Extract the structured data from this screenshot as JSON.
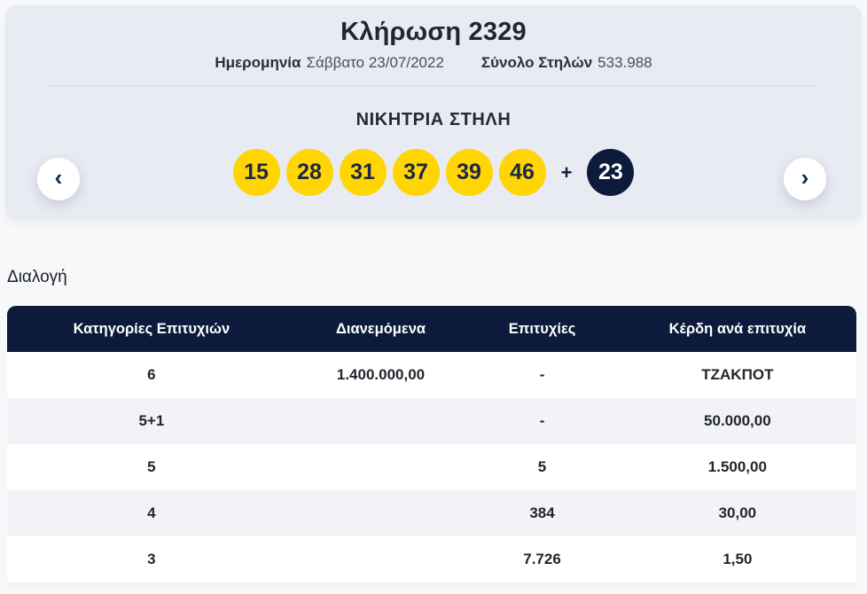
{
  "hero": {
    "title": "Κλήρωση 2329",
    "meta": {
      "date_label": "Ημερομηνία",
      "date_value": "Σάββατο 23/07/2022",
      "total_columns_label": "Σύνολο Στηλών",
      "total_columns_value": "533.988"
    },
    "winning_column_title": "ΝΙΚΗΤΡΙΑ ΣΤΗΛΗ",
    "numbers": [
      "15",
      "28",
      "31",
      "37",
      "39",
      "46"
    ],
    "plus_sign": "+",
    "bonus_number": "23",
    "nav": {
      "prev_icon": "‹",
      "next_icon": "›"
    }
  },
  "section": {
    "title": "Διαλογή"
  },
  "table": {
    "headers": [
      "Κατηγορίες Επιτυχιών",
      "Διανεμόμενα",
      "Επιτυχίες",
      "Κέρδη ανά επιτυχία"
    ],
    "rows": [
      {
        "category": "6",
        "distributed": "1.400.000,00",
        "winners": "-",
        "prize": "ΤΖΑΚΠΟΤ"
      },
      {
        "category": "5+1",
        "distributed": "",
        "winners": "-",
        "prize": "50.000,00"
      },
      {
        "category": "5",
        "distributed": "",
        "winners": "5",
        "prize": "1.500,00"
      },
      {
        "category": "4",
        "distributed": "",
        "winners": "384",
        "prize": "30,00"
      },
      {
        "category": "3",
        "distributed": "",
        "winners": "7.726",
        "prize": "1,50"
      }
    ]
  },
  "colors": {
    "ball_yellow": "#ffd503",
    "navy": "#0c1a3b",
    "hero_background": "#e9ebf3",
    "alt_row": "#f2f3f6"
  }
}
